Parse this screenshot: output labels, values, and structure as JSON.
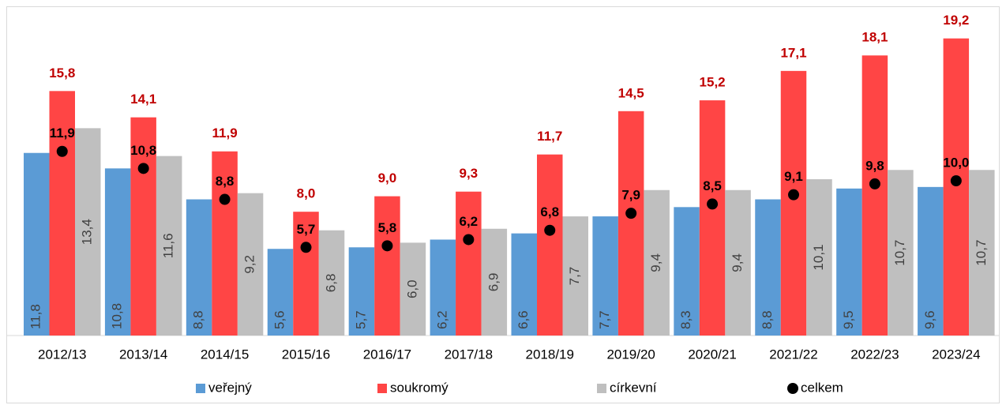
{
  "chart_data": {
    "type": "bar",
    "categories": [
      "2012/13",
      "2013/14",
      "2014/15",
      "2015/16",
      "2016/17",
      "2017/18",
      "2018/19",
      "2019/20",
      "2020/21",
      "2021/22",
      "2022/23",
      "2023/24"
    ],
    "series": [
      {
        "name": "veřejný",
        "color": "#5b9bd5",
        "values": [
          11.8,
          10.8,
          8.8,
          5.6,
          5.7,
          6.2,
          6.6,
          7.7,
          8.3,
          8.8,
          9.5,
          9.6
        ],
        "value_labels": [
          "11,8",
          "10,8",
          "8,8",
          "5,6",
          "5,7",
          "6,2",
          "6,6",
          "7,7",
          "8,3",
          "8,8",
          "9,5",
          "9,6"
        ]
      },
      {
        "name": "soukromý",
        "color": "#ff4545",
        "values": [
          15.8,
          14.1,
          11.9,
          8.0,
          9.0,
          9.3,
          11.7,
          14.5,
          15.2,
          17.1,
          18.1,
          19.2
        ],
        "value_labels": [
          "15,8",
          "14,1",
          "11,9",
          "8,0",
          "9,0",
          "9,3",
          "11,7",
          "14,5",
          "15,2",
          "17,1",
          "18,1",
          "19,2"
        ]
      },
      {
        "name": "církevní",
        "color": "#bfbfbf",
        "values": [
          13.4,
          11.6,
          9.2,
          6.8,
          6.0,
          6.9,
          7.7,
          9.4,
          9.4,
          10.1,
          10.7,
          10.7
        ],
        "value_labels": [
          "13,4",
          "11,6",
          "9,2",
          "6,8",
          "6,0",
          "6,9",
          "7,7",
          "9,4",
          "9,4",
          "10,1",
          "10,7",
          "10,7"
        ]
      },
      {
        "name": "celkem",
        "color": "#000000",
        "type": "scatter",
        "values": [
          11.9,
          10.8,
          8.8,
          5.7,
          5.8,
          6.2,
          6.8,
          7.9,
          8.5,
          9.1,
          9.8,
          10.0
        ],
        "value_labels": [
          "11,9",
          "10,8",
          "8,8",
          "5,7",
          "5,8",
          "6,2",
          "6,8",
          "7,9",
          "8,5",
          "9,1",
          "9,8",
          "10,0"
        ]
      }
    ],
    "ylim": [
      0,
      20
    ],
    "legend": "bottom"
  }
}
